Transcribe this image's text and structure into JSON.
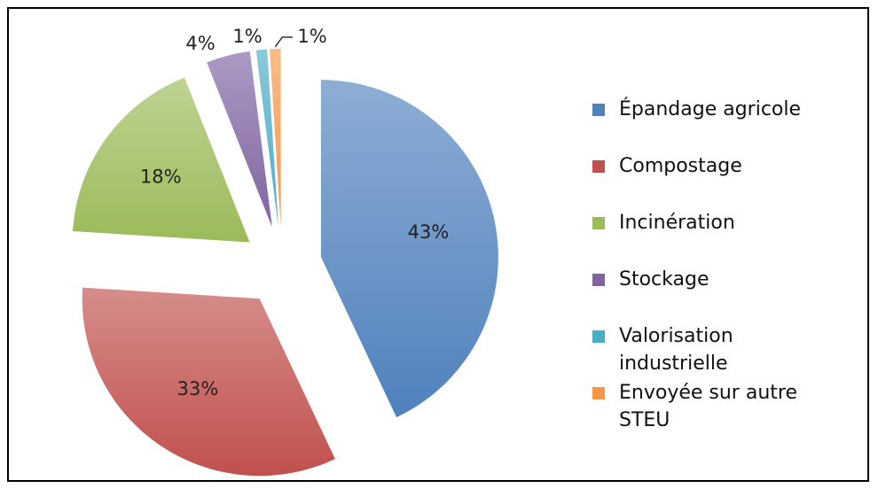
{
  "chart_data": {
    "type": "pie",
    "categories": [
      "Épandage agricole",
      "Compostage",
      "Incinération",
      "Stockage",
      "Valorisation industrielle",
      "Envoyée sur autre STEU"
    ],
    "values": [
      43,
      33,
      18,
      4,
      1,
      1
    ],
    "value_labels": [
      "43%",
      "33%",
      "18%",
      "4%",
      "1%",
      "1%"
    ],
    "colors": [
      "#4f81bd",
      "#c0504d",
      "#9bbb59",
      "#8064a2",
      "#4bacc6",
      "#f79646"
    ],
    "legend": "right"
  }
}
